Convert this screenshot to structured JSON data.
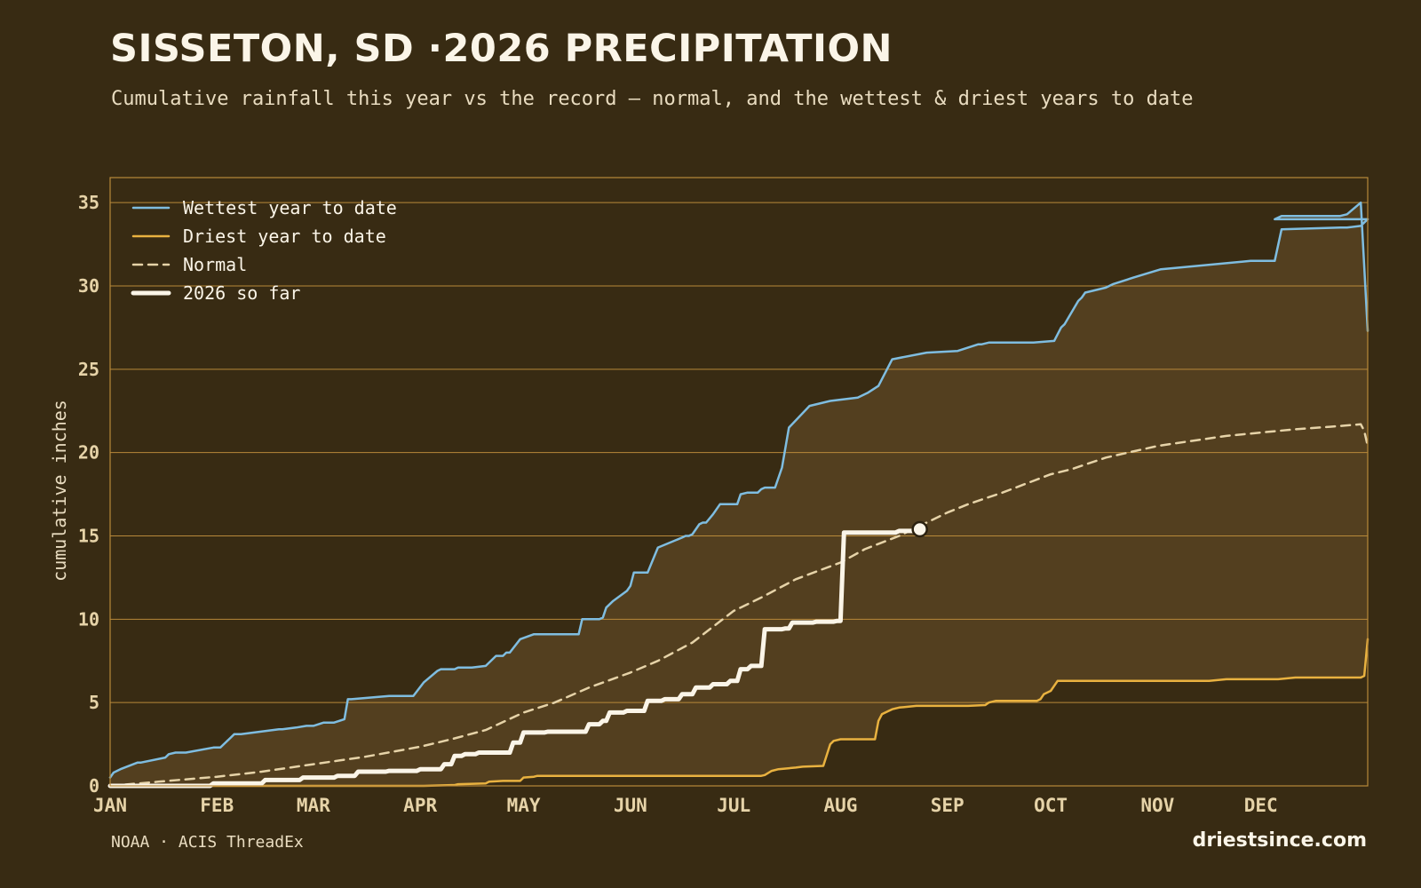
{
  "title": "SISSETON, SD ·2026 PRECIPITATION",
  "subtitle": "Cumulative rainfall this year vs the record — normal, and the wettest & driest years to date",
  "source": "NOAA · ACIS ThreadEx",
  "brand": "driestsince.com",
  "colors": {
    "background": "#382b13",
    "band": "#533f1f",
    "grid": "#b8893a",
    "wettest": "#7fbde0",
    "driest": "#e9b240",
    "normal": "#e6d3a8",
    "current": "#fbf5e8"
  },
  "chart_data": {
    "type": "line",
    "title": "SISSETON, SD ·2026 PRECIPITATION",
    "subtitle": "Cumulative rainfall this year vs the record — normal, and the wettest & driest years to date",
    "xlabel": "",
    "ylabel": "cumulative inches",
    "x_unit": "day of year",
    "xlim": [
      1,
      366
    ],
    "ylim": [
      0,
      36.5
    ],
    "yticks": [
      0,
      5,
      10,
      15,
      20,
      25,
      30,
      35
    ],
    "xticks": [
      {
        "label": "JAN",
        "day": 1
      },
      {
        "label": "FEB",
        "day": 32
      },
      {
        "label": "MAR",
        "day": 60
      },
      {
        "label": "APR",
        "day": 91
      },
      {
        "label": "MAY",
        "day": 121
      },
      {
        "label": "JUN",
        "day": 152
      },
      {
        "label": "JUL",
        "day": 182
      },
      {
        "label": "AUG",
        "day": 213
      },
      {
        "label": "SEP",
        "day": 244
      },
      {
        "label": "OCT",
        "day": 274
      },
      {
        "label": "NOV",
        "day": 305
      },
      {
        "label": "DEC",
        "day": 335
      }
    ],
    "grid": "horizontal",
    "legend_position": "top-left",
    "band_between": [
      "Driest year to date",
      "Wettest year to date"
    ],
    "series": [
      {
        "name": "Wettest year to date",
        "style": "solid",
        "x": [
          1,
          2,
          4,
          9,
          10,
          17,
          18,
          20,
          21,
          23,
          31,
          33,
          36,
          37,
          39,
          50,
          51,
          55,
          58,
          60,
          63,
          66,
          69,
          70,
          71,
          82,
          83,
          84,
          86,
          89,
          92,
          96,
          97,
          99,
          101,
          102,
          104,
          106,
          110,
          113,
          115,
          116,
          117,
          120,
          124,
          137,
          138,
          139,
          140,
          143,
          144,
          145,
          147,
          151,
          152,
          153,
          154,
          157,
          160,
          167,
          168,
          169,
          170,
          172,
          173,
          174,
          176,
          178,
          179,
          183,
          184,
          186,
          187,
          189,
          190,
          191,
          194,
          196,
          198,
          204,
          210,
          218,
          221,
          224,
          228,
          238,
          247,
          253,
          254,
          256,
          257,
          262,
          265,
          267,
          269,
          275,
          277,
          278,
          282,
          283,
          284,
          290,
          291,
          292,
          298,
          306,
          332,
          333,
          339,
          341,
          358,
          360,
          364,
          366
        ],
        "y": [
          0.5,
          0.8,
          1.0,
          1.4,
          1.4,
          1.7,
          1.9,
          2.0,
          2.0,
          2.0,
          2.3,
          2.3,
          2.9,
          3.1,
          3.1,
          3.4,
          3.4,
          3.5,
          3.6,
          3.6,
          3.8,
          3.8,
          4.0,
          5.2,
          5.2,
          5.4,
          5.4,
          5.4,
          5.4,
          5.4,
          6.2,
          6.9,
          7.0,
          7.0,
          7.0,
          7.1,
          7.1,
          7.1,
          7.2,
          7.8,
          7.8,
          8.0,
          8.0,
          8.8,
          9.1,
          9.1,
          10.0,
          10.0,
          10.0,
          10.0,
          10.1,
          10.7,
          11.1,
          11.7,
          12.0,
          12.8,
          12.8,
          12.8,
          14.3,
          14.9,
          15.0,
          15.0,
          15.1,
          15.7,
          15.8,
          15.8,
          16.3,
          16.9,
          16.9,
          16.9,
          17.5,
          17.6,
          17.6,
          17.6,
          17.8,
          17.9,
          17.9,
          19.1,
          21.5,
          22.8,
          23.1,
          23.3,
          23.6,
          24.0,
          25.6,
          26.0,
          26.1,
          26.5,
          26.5,
          26.6,
          26.6,
          26.6,
          26.6,
          26.6,
          26.6,
          26.7,
          27.5,
          27.7,
          29.1,
          29.3,
          29.6,
          29.9,
          30.0,
          30.1,
          30.5,
          31.0,
          31.5,
          31.5,
          31.5,
          33.4,
          33.5,
          33.5,
          33.6,
          34.0
        ],
        "x_end": [
          339,
          341,
          358,
          360,
          364,
          366
        ],
        "y_end": [
          34.0,
          34.2,
          34.2,
          34.3,
          35.0,
          27.3
        ]
      },
      {
        "name": "Driest year to date",
        "style": "solid",
        "x": [
          1,
          91,
          92,
          100,
          101,
          102,
          110,
          111,
          115,
          120,
          121,
          124,
          125,
          190,
          191,
          193,
          195,
          200,
          202,
          208,
          210,
          211,
          213,
          215,
          218,
          223,
          224,
          225,
          227,
          228,
          230,
          235,
          250,
          255,
          256,
          258,
          260,
          262,
          270,
          271,
          272,
          274,
          276,
          320,
          325,
          340,
          345,
          360,
          364,
          365,
          366
        ],
        "y": [
          0.0,
          0.0,
          0.0,
          0.05,
          0.05,
          0.1,
          0.15,
          0.25,
          0.3,
          0.3,
          0.5,
          0.55,
          0.6,
          0.6,
          0.65,
          0.9,
          1.0,
          1.1,
          1.15,
          1.2,
          2.5,
          2.7,
          2.8,
          2.8,
          2.8,
          2.8,
          3.9,
          4.3,
          4.5,
          4.6,
          4.7,
          4.8,
          4.8,
          4.85,
          5.0,
          5.1,
          5.1,
          5.1,
          5.1,
          5.2,
          5.5,
          5.7,
          6.3,
          6.3,
          6.4,
          6.4,
          6.5,
          6.5,
          6.5,
          6.6,
          8.8
        ]
      },
      {
        "name": "Normal",
        "style": "dashed",
        "x": [
          1,
          15,
          32,
          45,
          60,
          75,
          91,
          100,
          110,
          121,
          130,
          140,
          152,
          160,
          170,
          182,
          190,
          200,
          213,
          220,
          230,
          244,
          250,
          260,
          274,
          280,
          290,
          305,
          315,
          325,
          335,
          345,
          355,
          364,
          365,
          366
        ],
        "y": [
          0.0,
          0.25,
          0.55,
          0.85,
          1.3,
          1.75,
          2.35,
          2.8,
          3.35,
          4.4,
          5.0,
          5.9,
          6.8,
          7.5,
          8.6,
          10.5,
          11.3,
          12.4,
          13.4,
          14.2,
          15.0,
          16.4,
          16.9,
          17.6,
          18.7,
          19.0,
          19.7,
          20.4,
          20.7,
          21.0,
          21.2,
          21.4,
          21.55,
          21.7,
          21.3,
          20.4
        ]
      },
      {
        "name": "2026 so far",
        "style": "thick",
        "x": [
          1,
          30,
          31,
          45,
          46,
          56,
          57,
          66,
          67,
          72,
          73,
          81,
          82,
          90,
          91,
          97,
          98,
          100,
          101,
          103,
          104,
          107,
          108,
          117,
          118,
          120,
          121,
          127,
          128,
          139,
          140,
          143,
          144,
          145,
          146,
          150,
          151,
          156,
          157,
          161,
          162,
          166,
          167,
          170,
          171,
          175,
          176,
          180,
          181,
          183,
          184,
          186,
          187,
          190,
          191,
          196,
          197,
          198,
          199,
          205,
          206,
          211,
          212,
          213,
          214,
          229,
          230,
          234,
          235,
          236
        ],
        "y": [
          0.0,
          0.0,
          0.15,
          0.15,
          0.35,
          0.35,
          0.5,
          0.5,
          0.6,
          0.6,
          0.85,
          0.85,
          0.9,
          0.9,
          1.0,
          1.0,
          1.3,
          1.3,
          1.8,
          1.8,
          1.9,
          1.9,
          2.0,
          2.0,
          2.6,
          2.6,
          3.2,
          3.2,
          3.25,
          3.25,
          3.7,
          3.7,
          3.9,
          3.9,
          4.4,
          4.4,
          4.5,
          4.5,
          5.1,
          5.1,
          5.2,
          5.2,
          5.5,
          5.5,
          5.9,
          5.9,
          6.1,
          6.1,
          6.3,
          6.3,
          7.0,
          7.0,
          7.2,
          7.2,
          9.4,
          9.4,
          9.45,
          9.45,
          9.8,
          9.8,
          9.85,
          9.85,
          9.9,
          9.9,
          15.2,
          15.2,
          15.3,
          15.3,
          15.4,
          15.4
        ],
        "last_point": {
          "x": 236,
          "y": 15.4
        }
      }
    ]
  }
}
